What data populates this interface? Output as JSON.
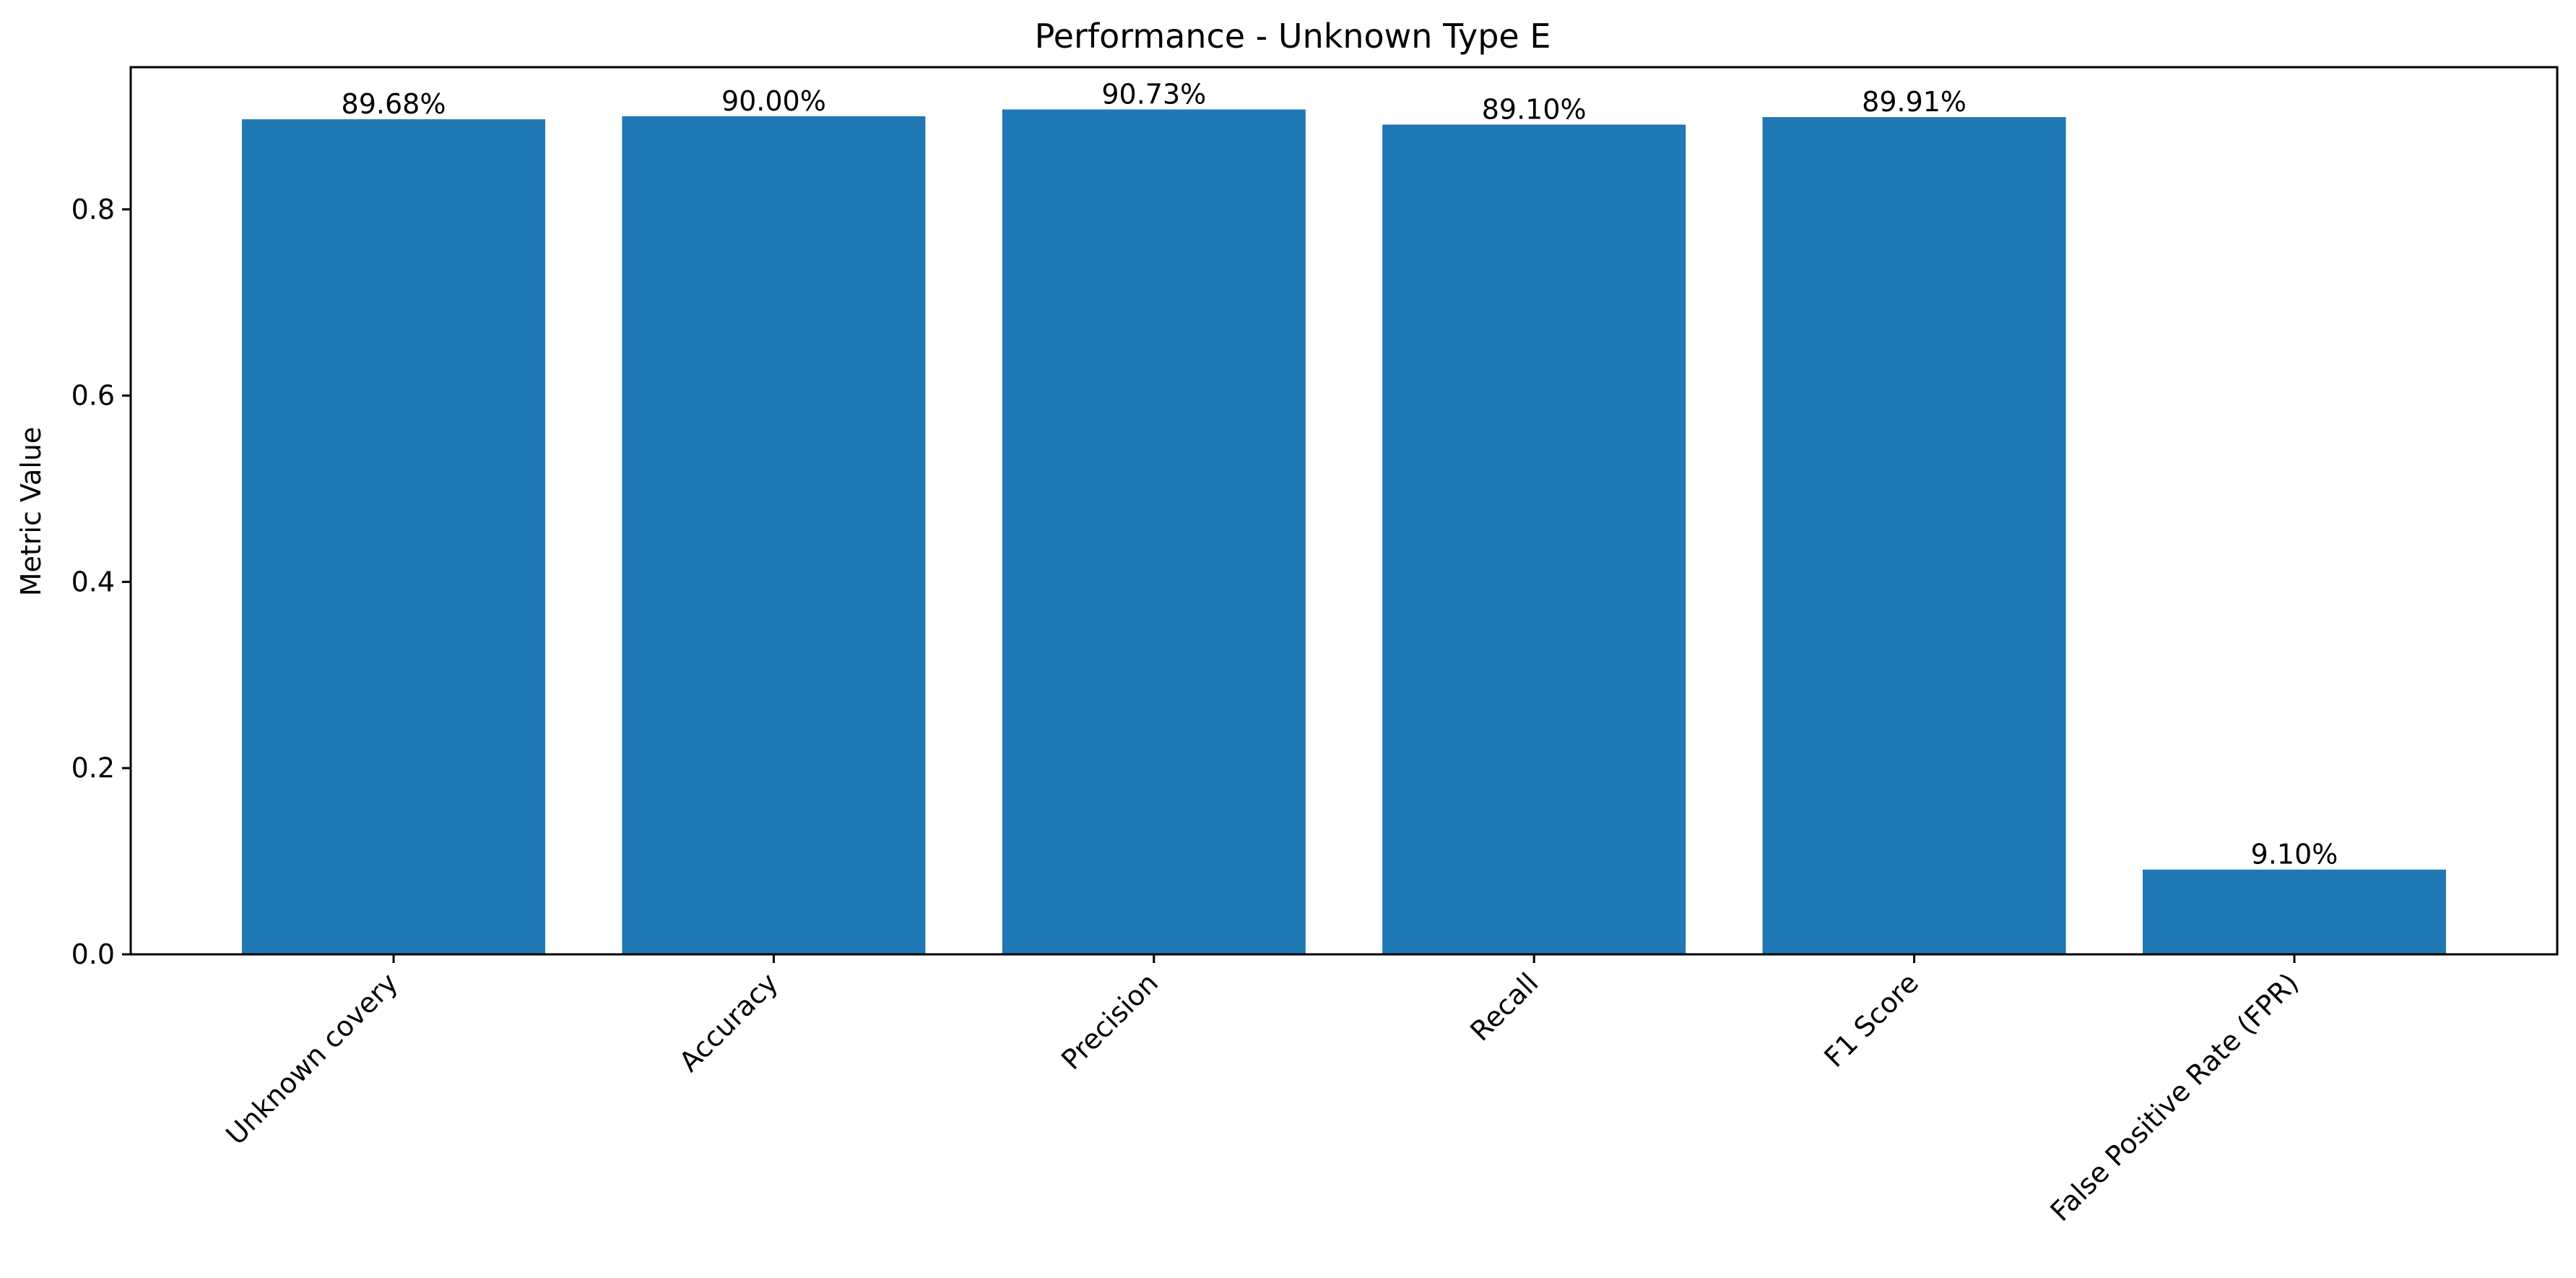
{
  "chart_data": {
    "type": "bar",
    "title": "Performance - Unknown Type E",
    "xlabel": "",
    "ylabel": "Metric Value",
    "categories": [
      "Unknown covery",
      "Accuracy",
      "Precision",
      "Recall",
      "F1 Score",
      "False Positive Rate (FPR)"
    ],
    "values": [
      0.8968,
      0.9,
      0.9073,
      0.891,
      0.8991,
      0.091
    ],
    "data_labels": [
      "89.68%",
      "90.00%",
      "90.73%",
      "89.10%",
      "89.91%",
      "9.10%"
    ],
    "yticks": [
      0.0,
      0.2,
      0.4,
      0.6,
      0.8
    ],
    "ytick_labels": [
      "0.0",
      "0.2",
      "0.4",
      "0.6",
      "0.8"
    ],
    "ylim": [
      0,
      0.9527
    ],
    "grid": false,
    "legend": "none",
    "bar_color": "#1f77b4"
  }
}
